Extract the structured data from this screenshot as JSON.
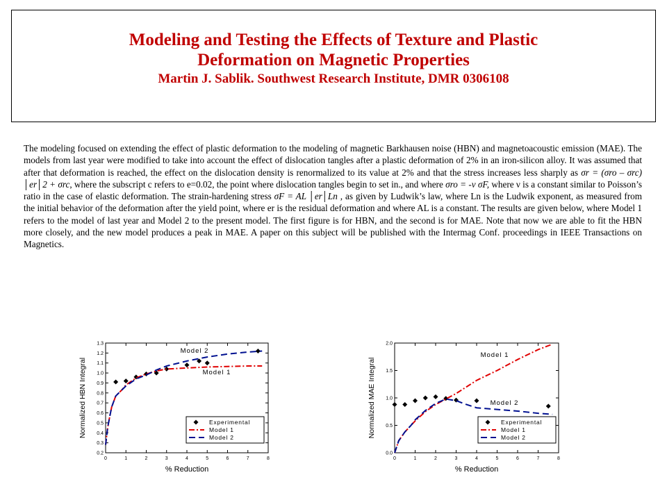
{
  "title": {
    "line1": "Modeling and Testing the Effects of Texture and Plastic",
    "line2": "Deformation on Magnetic Properties",
    "author": "Martin J. Sablik. Southwest Research Institute, DMR 0306108"
  },
  "body": {
    "p1": "The modeling focused on extending the effect of plastic deformation to the modeling of magnetic Barkhausen noise (HBN) and magnetoacoustic emission (MAE).  The models from last year were modified to take into account the effect of dislocation tangles after a plastic deformation of 2% in an iron-silicon alloy.  It was assumed that after that deformation is reached, the effect on the dislocation density is renormalized to its value at 2% and that the stress increases less sharply as",
    "eq1": "σr  =  (σro – σrc)  │er│2   +  σrc",
    "p2": ", where the subscript c refers to e=0.02, the point where dislocation tangles begin to set in., and where",
    "eq2": "σro = -ν σF,",
    "p3": "where ν is a constant similar to Poisson’s ratio in the case of elastic deformation. The strain-hardening stress",
    "eq3": "σF =  AL  │er│Ln ,",
    "p4": "as given by Ludwik’s law, where Ln is the Ludwik exponent, as measured from the initial behavior of the deformation after the yield point, where er is the residual deformation and where AL is a constant.  The results are given below, where Model 1 refers to the model of last year and Model 2 to the present model.  The first figure is for HBN, and the second is for MAE.  Note that now we are able to fit the HBN more closely, and the new model produces a peak in MAE.  A paper on this subject will be published with the Intermag Conf. proceedings in IEEE Transactions on Magnetics."
  },
  "chart_data": [
    {
      "type": "line",
      "xlabel": "% Reduction",
      "ylabel": "Normalized HBN Integral",
      "xlim": [
        0,
        8
      ],
      "ylim": [
        0.2,
        1.3
      ],
      "xticks": [
        "0",
        "1",
        "2",
        "3",
        "4",
        "5",
        "6",
        "7",
        "8"
      ],
      "yticks": [
        "0.2",
        "0.3",
        "0.4",
        "0.5",
        "0.6",
        "0.7",
        "0.8",
        "0.9",
        "1.0",
        "1.1",
        "1.2",
        "1.3"
      ],
      "legend": [
        "Experimental",
        "Model 1",
        "Model 2"
      ],
      "legend_position": "bottom-right",
      "annotations": [
        "Model 2",
        "Model 1"
      ],
      "series": [
        {
          "name": "Experimental",
          "style": "diamond",
          "color": "#000000",
          "x": [
            0.5,
            1.0,
            1.5,
            2.0,
            2.5,
            3.0,
            4.0,
            4.6,
            5.0,
            7.5
          ],
          "y": [
            0.91,
            0.92,
            0.96,
            0.99,
            1.0,
            1.04,
            1.08,
            1.12,
            1.1,
            1.22
          ]
        },
        {
          "name": "Model 1",
          "style": "dashdot",
          "color": "#e00000",
          "x": [
            0,
            0.1,
            0.2,
            0.3,
            0.5,
            0.8,
            1.0,
            1.5,
            2.0,
            2.5,
            3.0,
            4.0,
            5.0,
            6.0,
            7.0,
            7.7
          ],
          "y": [
            0.28,
            0.45,
            0.56,
            0.66,
            0.77,
            0.83,
            0.88,
            0.95,
            0.99,
            1.02,
            1.04,
            1.05,
            1.06,
            1.065,
            1.07,
            1.07
          ]
        },
        {
          "name": "Model 2",
          "style": "dashed",
          "color": "#001090",
          "x": [
            0,
            0.1,
            0.2,
            0.3,
            0.5,
            0.8,
            1.0,
            1.5,
            2.0,
            2.5,
            3.0,
            4.0,
            5.0,
            6.0,
            7.0,
            7.7
          ],
          "y": [
            0.28,
            0.45,
            0.56,
            0.66,
            0.77,
            0.83,
            0.87,
            0.94,
            0.98,
            1.03,
            1.07,
            1.12,
            1.16,
            1.19,
            1.21,
            1.22
          ]
        }
      ]
    },
    {
      "type": "line",
      "xlabel": "% Reduction",
      "ylabel": "Normalized MAE Integral",
      "xlim": [
        0,
        8
      ],
      "ylim": [
        0,
        2.0
      ],
      "xticks": [
        "0",
        "1",
        "2",
        "3",
        "4",
        "5",
        "6",
        "7",
        "8"
      ],
      "yticks": [
        "0.0",
        "0.5",
        "1.0",
        "1.5",
        "2.0"
      ],
      "legend": [
        "Experimental",
        "Model 1",
        "Model 2"
      ],
      "legend_position": "bottom-right",
      "annotations": [
        "Model 1",
        "Model 2"
      ],
      "series": [
        {
          "name": "Experimental",
          "style": "diamond",
          "color": "#000000",
          "x": [
            0,
            0.5,
            1.0,
            1.5,
            2.0,
            2.5,
            3.0,
            4.0,
            5.0,
            7.5
          ],
          "y": [
            0.88,
            0.88,
            0.95,
            1.0,
            1.02,
            0.99,
            0.96,
            0.95,
            0.89,
            0.85
          ]
        },
        {
          "name": "Model 1",
          "style": "dashdot",
          "color": "#e00000",
          "x": [
            0,
            0.2,
            0.5,
            0.8,
            1.0,
            1.5,
            2.0,
            2.5,
            3.0,
            4.0,
            5.0,
            6.0,
            7.0,
            7.7
          ],
          "y": [
            0,
            0.22,
            0.38,
            0.5,
            0.58,
            0.75,
            0.88,
            0.98,
            1.08,
            1.32,
            1.5,
            1.7,
            1.88,
            1.98
          ]
        },
        {
          "name": "Model 2",
          "style": "dashed",
          "color": "#001090",
          "x": [
            0,
            0.2,
            0.5,
            0.8,
            1.0,
            1.5,
            2.0,
            2.5,
            3.0,
            3.5,
            4.0,
            5.0,
            6.0,
            7.0,
            7.7
          ],
          "y": [
            0,
            0.22,
            0.38,
            0.5,
            0.6,
            0.77,
            0.9,
            0.98,
            0.95,
            0.88,
            0.82,
            0.79,
            0.76,
            0.72,
            0.7
          ]
        }
      ]
    }
  ]
}
